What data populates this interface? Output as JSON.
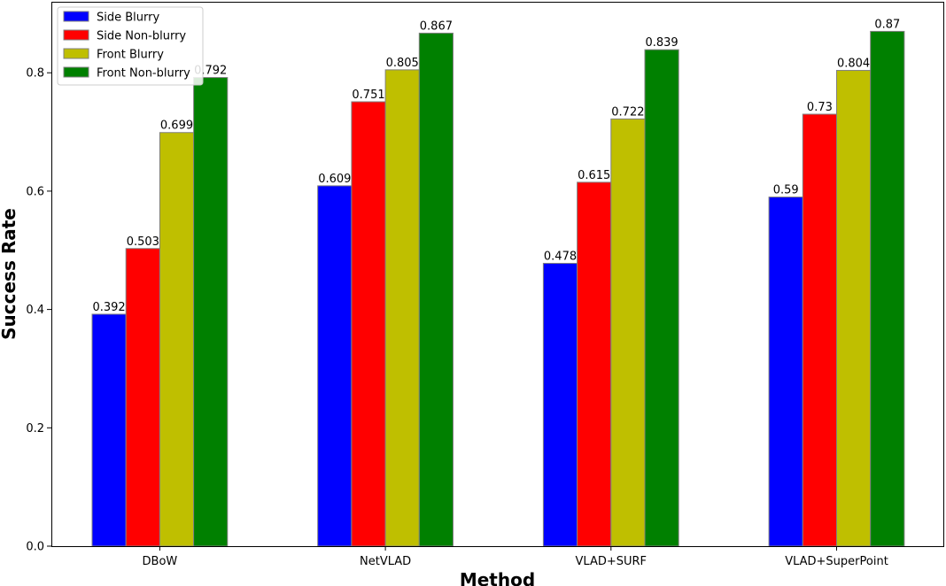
{
  "chart_data": {
    "type": "bar",
    "xlabel": "Method",
    "ylabel": "Success Rate",
    "categories": [
      "DBoW",
      "NetVLAD",
      "VLAD+SURF",
      "VLAD+SuperPoint"
    ],
    "ylim": [
      0,
      0.92
    ],
    "yticks": [
      "0.0",
      "0.2",
      "0.4",
      "0.6",
      "0.8"
    ],
    "legend_position": "top-left",
    "grid": false,
    "series": [
      {
        "name": "Side Blurry",
        "color": "#0000ff",
        "values": [
          0.392,
          0.609,
          0.478,
          0.59
        ],
        "labels": [
          "0.392",
          "0.609",
          "0.478",
          "0.59"
        ]
      },
      {
        "name": "Side Non-blurry",
        "color": "#ff0000",
        "values": [
          0.503,
          0.751,
          0.615,
          0.73
        ],
        "labels": [
          "0.503",
          "0.751",
          "0.615",
          "0.73"
        ]
      },
      {
        "name": "Front Blurry",
        "color": "#bfbf00",
        "values": [
          0.699,
          0.805,
          0.722,
          0.804
        ],
        "labels": [
          "0.699",
          "0.805",
          "0.722",
          "0.804"
        ]
      },
      {
        "name": "Front Non-blurry",
        "color": "#008000",
        "values": [
          0.792,
          0.867,
          0.839,
          0.87
        ],
        "labels": [
          "0.792",
          "0.867",
          "0.839",
          "0.87"
        ]
      }
    ]
  }
}
